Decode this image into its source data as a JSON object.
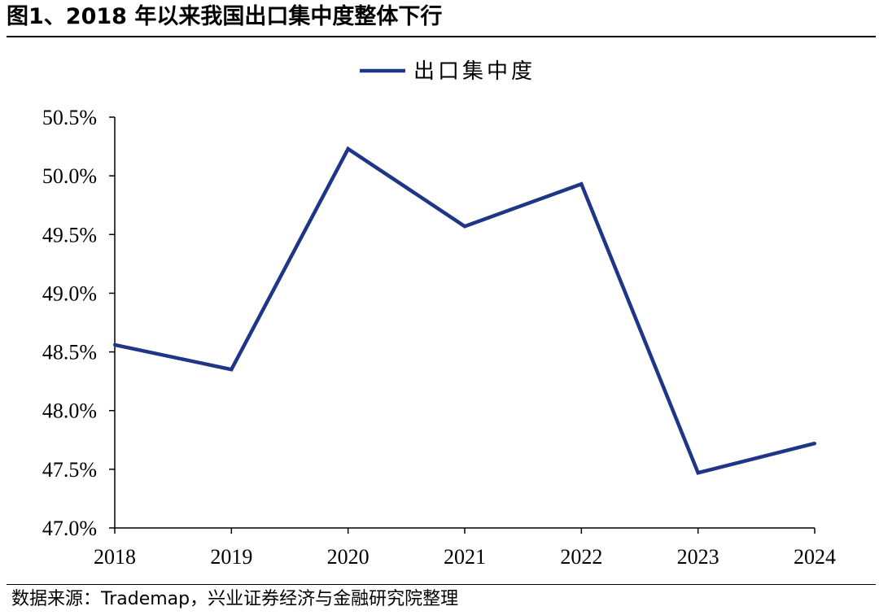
{
  "figure": {
    "title": "图1、2018 年以来我国出口集中度整体下行",
    "source": "数据来源：Trademap，兴业证券经济与金融研究院整理"
  },
  "chart_data": {
    "type": "line",
    "title": "",
    "xlabel": "",
    "ylabel": "",
    "x": [
      "2018",
      "2019",
      "2020",
      "2021",
      "2022",
      "2023",
      "2024"
    ],
    "series": [
      {
        "name": "出口集中度",
        "color": "#1f3587",
        "values": [
          48.56,
          48.35,
          50.23,
          49.57,
          49.93,
          47.47,
          47.72
        ]
      }
    ],
    "ylim": [
      47.0,
      50.5
    ],
    "yticks": [
      "47.0%",
      "47.5%",
      "48.0%",
      "48.5%",
      "49.0%",
      "49.5%",
      "50.0%",
      "50.5%"
    ],
    "y_unit": "%",
    "grid": false,
    "legend_position": "top-center"
  }
}
